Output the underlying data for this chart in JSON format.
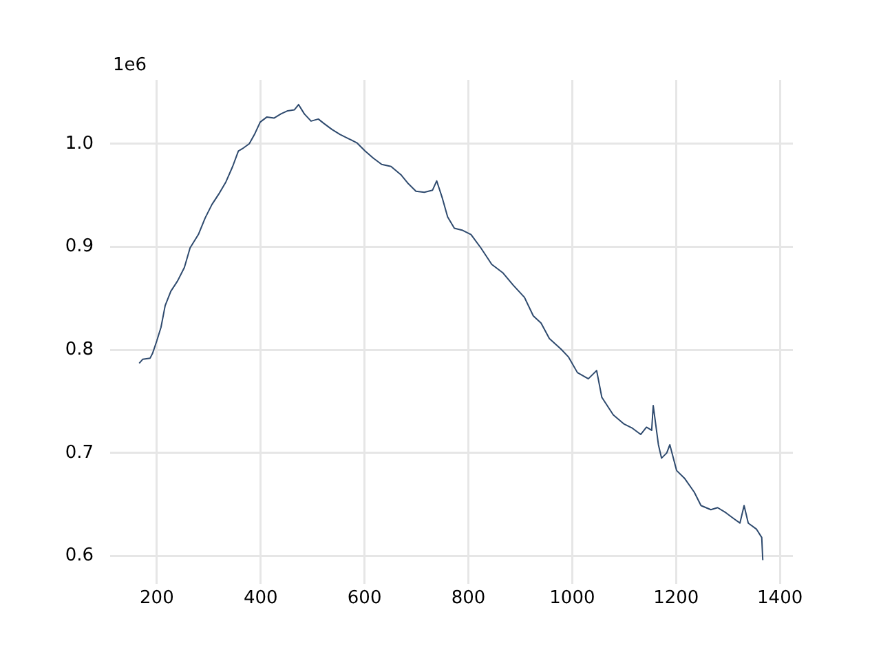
{
  "chart_data": {
    "type": "line",
    "x": [
      166,
      173,
      187,
      192,
      200,
      208,
      216,
      227,
      240,
      253,
      264,
      280,
      293,
      306,
      319,
      333,
      346,
      357,
      367,
      378,
      388,
      399,
      412,
      426,
      439,
      452,
      465,
      473,
      484,
      497,
      511,
      521,
      537,
      553,
      569,
      585,
      601,
      617,
      633,
      651,
      670,
      683,
      699,
      715,
      731,
      739,
      750,
      760,
      773,
      789,
      805,
      824,
      845,
      866,
      886,
      908,
      925,
      940,
      956,
      978,
      993,
      1010,
      1031,
      1047,
      1057,
      1079,
      1100,
      1116,
      1132,
      1143,
      1153,
      1156,
      1166,
      1172,
      1182,
      1188,
      1201,
      1217,
      1235,
      1248,
      1267,
      1280,
      1296,
      1312,
      1323,
      1331,
      1339,
      1355,
      1365,
      1367
    ],
    "series": [
      {
        "color": "#2e4a6e",
        "values": [
          0.787,
          0.791,
          0.792,
          0.797,
          0.809,
          0.822,
          0.843,
          0.857,
          0.867,
          0.88,
          0.899,
          0.912,
          0.928,
          0.941,
          0.951,
          0.963,
          0.978,
          0.993,
          0.996,
          1.0,
          1.009,
          1.021,
          1.026,
          1.025,
          1.029,
          1.032,
          1.033,
          1.038,
          1.029,
          1.022,
          1.024,
          1.02,
          1.014,
          1.009,
          1.005,
          1.001,
          0.993,
          0.986,
          0.98,
          0.978,
          0.97,
          0.962,
          0.954,
          0.953,
          0.955,
          0.964,
          0.947,
          0.929,
          0.918,
          0.916,
          0.912,
          0.899,
          0.883,
          0.875,
          0.863,
          0.851,
          0.833,
          0.826,
          0.811,
          0.801,
          0.793,
          0.778,
          0.772,
          0.78,
          0.754,
          0.737,
          0.728,
          0.724,
          0.718,
          0.725,
          0.722,
          0.746,
          0.708,
          0.695,
          0.7,
          0.708,
          0.683,
          0.675,
          0.662,
          0.649,
          0.645,
          0.647,
          0.642,
          0.636,
          0.632,
          0.649,
          0.632,
          0.626,
          0.618,
          0.596
        ]
      }
    ],
    "xlim": [
      110,
      1425
    ],
    "xticks": [
      200,
      400,
      600,
      800,
      1000,
      1200,
      1400
    ],
    "ylim": [
      0.573,
      1.062
    ],
    "yticks": [
      0.6,
      0.7,
      0.8,
      0.9,
      {
        "value": 1,
        "label": "1.0"
      }
    ],
    "annotations": [
      "1e6"
    ],
    "grid": true,
    "legend": false,
    "marker": "none",
    "line_style": "solid"
  }
}
